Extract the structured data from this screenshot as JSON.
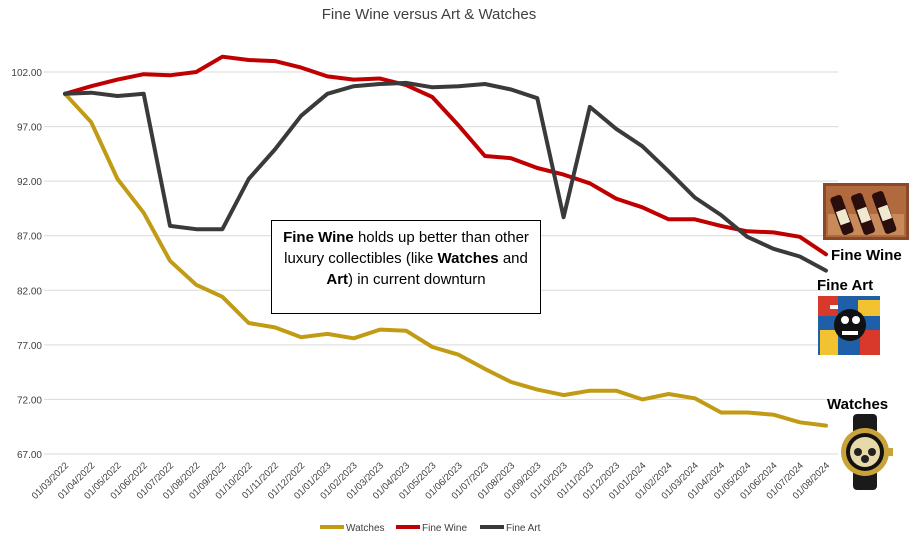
{
  "chart_data": {
    "type": "line",
    "title": "Fine Wine versus Art & Watches",
    "ylim": [
      67,
      104
    ],
    "yticks": [
      "67.00",
      "72.00",
      "77.00",
      "82.00",
      "87.00",
      "92.00",
      "97.00",
      "102.00"
    ],
    "categories": [
      "01/03/2022",
      "01/04/2022",
      "01/05/2022",
      "01/06/2022",
      "01/07/2022",
      "01/08/2022",
      "01/09/2022",
      "01/10/2022",
      "01/11/2022",
      "01/12/2022",
      "01/01/2023",
      "01/02/2023",
      "01/03/2023",
      "01/04/2023",
      "01/05/2023",
      "01/06/2023",
      "01/07/2023",
      "01/08/2023",
      "01/09/2023",
      "01/10/2023",
      "01/11/2023",
      "01/12/2023",
      "01/01/2024",
      "01/02/2024",
      "01/03/2024",
      "01/04/2024",
      "01/05/2024",
      "01/06/2024",
      "01/07/2024",
      "01/08/2024"
    ],
    "series": [
      {
        "name": "Watches",
        "color": "#c29b14",
        "values": [
          100,
          97.4,
          92.2,
          89.1,
          84.7,
          82.5,
          81.4,
          79.0,
          78.6,
          77.7,
          78.0,
          77.6,
          78.4,
          78.3,
          76.8,
          76.1,
          74.8,
          73.6,
          72.9,
          72.4,
          72.8,
          72.8,
          72.0,
          72.5,
          72.1,
          70.8,
          70.8,
          70.6,
          69.9,
          69.6
        ]
      },
      {
        "name": "Fine Wine",
        "color": "#c00000",
        "values": [
          100,
          100.7,
          101.3,
          101.8,
          101.7,
          102.0,
          103.4,
          103.1,
          103.0,
          102.4,
          101.6,
          101.3,
          101.4,
          100.8,
          99.7,
          97.1,
          94.3,
          94.1,
          93.2,
          92.6,
          91.8,
          90.4,
          89.6,
          88.5,
          88.5,
          87.9,
          87.4,
          87.3,
          86.9,
          85.3
        ]
      },
      {
        "name": "Fine Art",
        "color": "#3a3a3a",
        "values": [
          100,
          100.1,
          99.8,
          100.0,
          87.9,
          87.6,
          87.6,
          92.2,
          94.9,
          98.0,
          100.0,
          100.7,
          100.9,
          101.0,
          100.6,
          100.7,
          100.9,
          100.4,
          99.6,
          88.7,
          98.8,
          96.8,
          95.2,
          92.9,
          90.5,
          88.9,
          86.9,
          85.8,
          85.1,
          83.8
        ]
      }
    ],
    "legend_position": "bottom",
    "grid": "horizontal",
    "annotation": {
      "parts": [
        {
          "text": "Fine Wine",
          "bold": true
        },
        {
          "text": " holds up better than other luxury collectibles (like ",
          "bold": false
        },
        {
          "text": "Watches",
          "bold": true
        },
        {
          "text": " and ",
          "bold": false
        },
        {
          "text": "Art",
          "bold": true
        },
        {
          "text": ") in current downturn",
          "bold": false
        }
      ]
    },
    "side_labels": {
      "fine_wine": "Fine Wine",
      "fine_art": "Fine Art",
      "watches": "Watches"
    }
  }
}
